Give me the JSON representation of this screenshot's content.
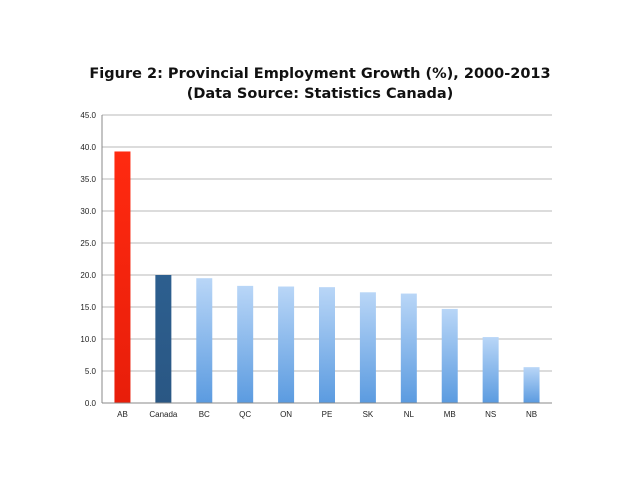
{
  "chart_data": {
    "type": "bar",
    "title": "Figure 2: Provincial Employment Growth (%), 2000-2013",
    "subtitle": "(Data Source: Statistics Canada)",
    "xlabel": "",
    "ylabel": "",
    "categories": [
      "AB",
      "Canada",
      "BC",
      "QC",
      "ON",
      "PE",
      "SK",
      "NL",
      "MB",
      "NS",
      "NB"
    ],
    "values": [
      39.3,
      20.0,
      19.5,
      18.3,
      18.2,
      18.1,
      17.3,
      17.1,
      14.7,
      10.3,
      5.6
    ],
    "bar_colors": [
      "#ff2a10",
      "#2d5f8f",
      "#8cbcf0",
      "#8cbcf0",
      "#8cbcf0",
      "#8cbcf0",
      "#8cbcf0",
      "#8cbcf0",
      "#8cbcf0",
      "#8cbcf0",
      "#8cbcf0"
    ],
    "ylim": [
      0,
      45
    ],
    "yticks": [
      "0.0",
      "5.0",
      "10.0",
      "15.0",
      "20.0",
      "25.0",
      "30.0",
      "35.0",
      "40.0",
      "45.0"
    ],
    "grid": true,
    "legend": "none"
  }
}
